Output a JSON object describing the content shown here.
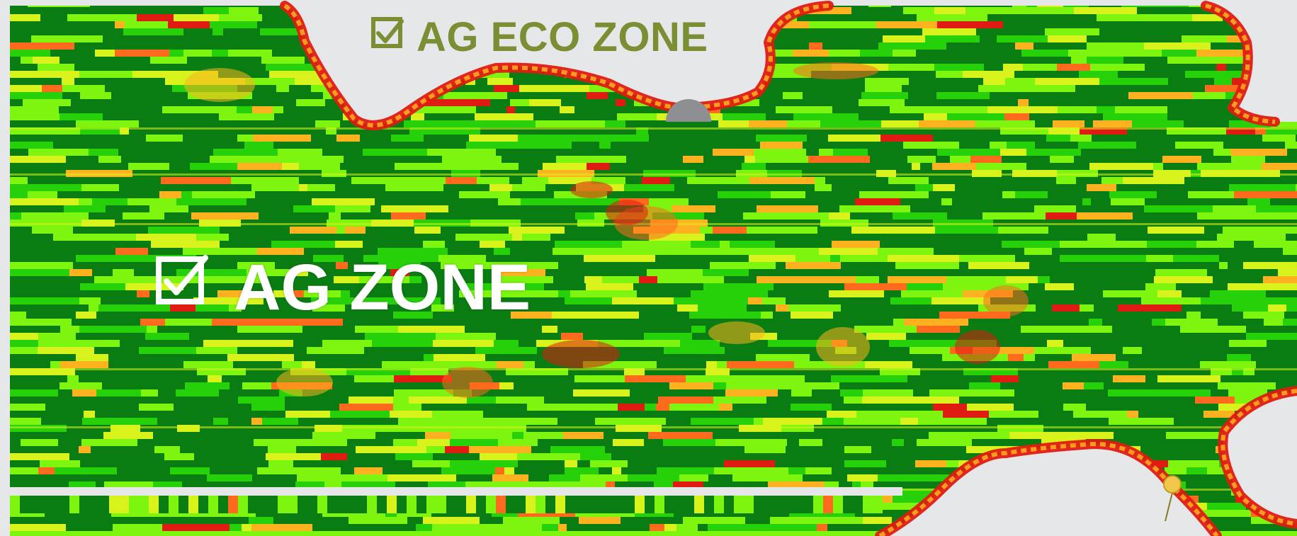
{
  "map": {
    "background_color": "#e6e7e9",
    "legend_colors": [
      "#0a7d12",
      "#27d10a",
      "#7ef50f",
      "#d8f21c",
      "#ffb21f",
      "#ff6a1d",
      "#df1b12",
      "#9c1010"
    ]
  },
  "labels": {
    "eco_zone": "AG ECO ZONE",
    "ag_zone": "AG ZONE",
    "eco_color": "#7a8f34",
    "ag_color": "#ffffff"
  },
  "markers": {
    "gray_marker": "gray-semicircle-marker",
    "pin": "yellow-map-pin"
  }
}
